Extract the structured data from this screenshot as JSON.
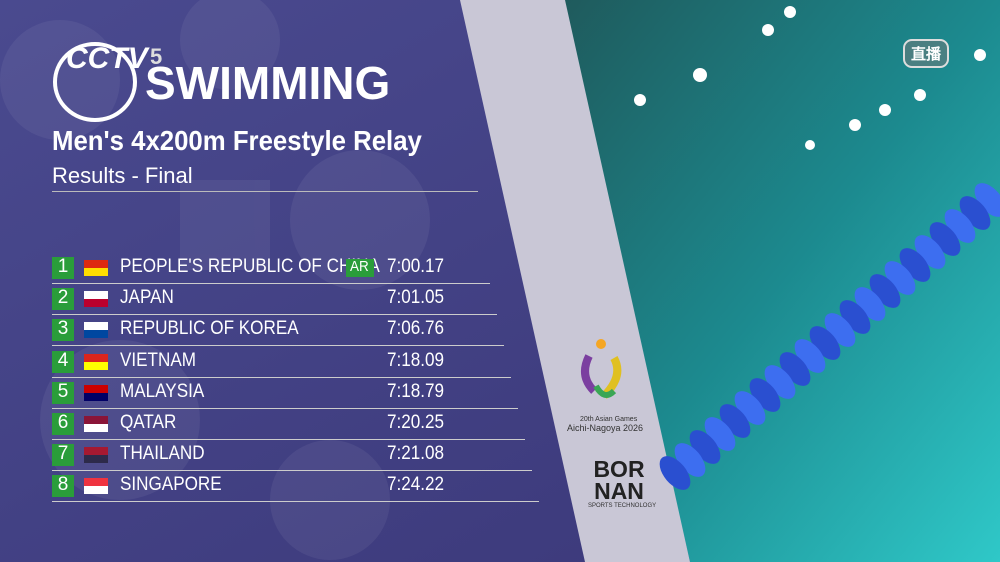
{
  "header": {
    "channel": "CCTV",
    "channel_number": "5",
    "sport": "SWIMMING",
    "event": "Men's 4x200m Freestyle Relay",
    "stage": "Results - Final"
  },
  "results": [
    {
      "rank": "1",
      "country": "PEOPLE'S REPUBLIC OF CHINA",
      "record": "AR",
      "time": "7:00.17"
    },
    {
      "rank": "2",
      "country": "JAPAN",
      "time": "7:01.05"
    },
    {
      "rank": "3",
      "country": "REPUBLIC OF KOREA",
      "time": "7:06.76"
    },
    {
      "rank": "4",
      "country": "VIETNAM",
      "time": "7:18.09"
    },
    {
      "rank": "5",
      "country": "MALAYSIA",
      "time": "7:18.79"
    },
    {
      "rank": "6",
      "country": "QATAR",
      "time": "7:20.25"
    },
    {
      "rank": "7",
      "country": "THAILAND",
      "time": "7:21.08"
    },
    {
      "rank": "8",
      "country": "SINGAPORE",
      "time": "7:24.22"
    }
  ],
  "games_logo": {
    "line1": "20th Asian Games",
    "line2": "Aichi-Nagoya 2026"
  },
  "sponsor": {
    "name": "BOR NAN",
    "tagline": "SPORTS TECHNOLOGY"
  },
  "live_badge": "直播"
}
